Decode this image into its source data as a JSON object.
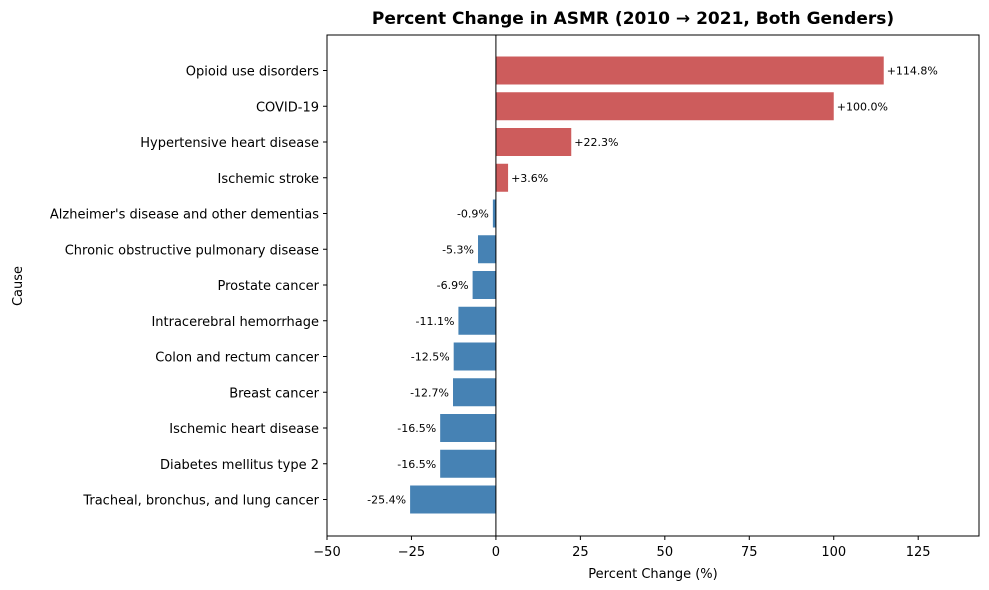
{
  "chart_data": {
    "type": "bar",
    "orientation": "horizontal",
    "title": "Percent Change in ASMR (2010 → 2021, Both Genders)",
    "xlabel": "Percent Change (%)",
    "ylabel": "Cause",
    "xlim": [
      -50,
      143
    ],
    "xticks": [
      -50,
      -25,
      0,
      25,
      50,
      75,
      100,
      125
    ],
    "xtick_labels": [
      "−50",
      "−25",
      "0",
      "25",
      "50",
      "75",
      "100",
      "125"
    ],
    "grid": false,
    "categories": [
      "Opioid use disorders",
      "COVID-19",
      "Hypertensive heart disease",
      "Ischemic stroke",
      "Alzheimer's disease and other dementias",
      "Chronic obstructive pulmonary disease",
      "Prostate cancer",
      "Intracerebral hemorrhage",
      "Colon and rectum cancer",
      "Breast cancer",
      "Ischemic heart disease",
      "Diabetes mellitus type 2",
      "Tracheal, bronchus, and lung cancer"
    ],
    "values": [
      114.8,
      100.0,
      22.3,
      3.6,
      -0.9,
      -5.3,
      -6.9,
      -11.1,
      -12.5,
      -12.7,
      -16.5,
      -16.5,
      -25.4
    ],
    "data_labels": [
      "+114.8%",
      "+100.0%",
      "+22.3%",
      "+3.6%",
      "-0.9%",
      "-5.3%",
      "-6.9%",
      "-11.1%",
      "-12.5%",
      "-12.7%",
      "-16.5%",
      "-16.5%",
      "-25.4%"
    ],
    "colors": {
      "positive": "#cd5c5c",
      "negative": "#4682b4",
      "zero_line": "#000000"
    }
  }
}
